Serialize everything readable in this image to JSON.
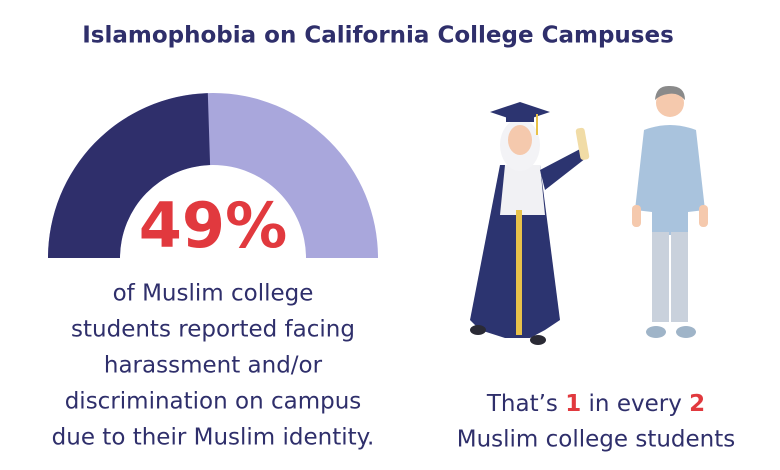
{
  "chart_data": {
    "type": "gauge",
    "title": "Islamophobia on California College Campuses",
    "value": 49,
    "value_label": "49%",
    "ylim": [
      0,
      100
    ],
    "colors": [
      "#2f2f6b",
      "#a9a7dc"
    ],
    "description_lines": [
      "of Muslim college",
      "students reported facing",
      "harassment and/or",
      "discrimination on campus",
      "due to their Muslim identity."
    ],
    "ratio_text": {
      "prefix": "That’s",
      "first": 1,
      "middle": "in every",
      "second": 2,
      "suffix": "Muslim college students"
    }
  }
}
